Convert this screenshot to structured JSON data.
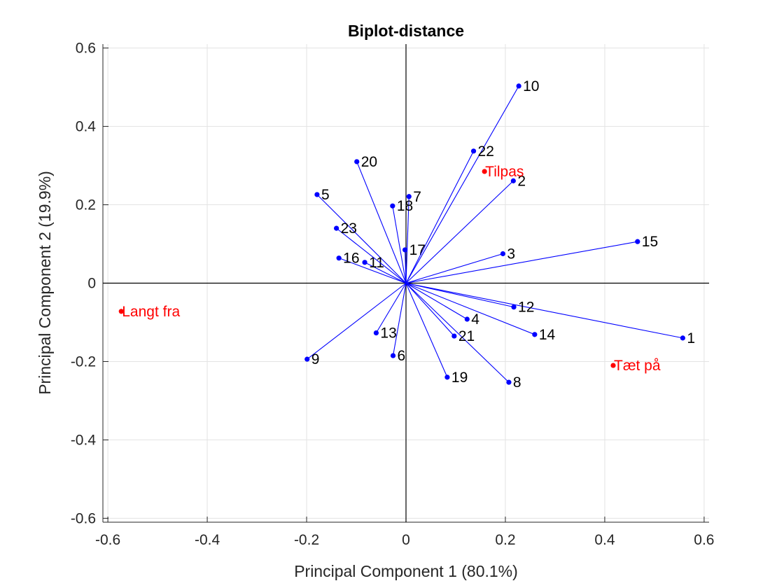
{
  "chart_data": {
    "type": "scatter",
    "title": "Biplot-distance",
    "xlabel": "Principal Component 1 (80.1%)",
    "ylabel": "Principal Component 2 (19.9%)",
    "xlim": [
      -0.61,
      0.61
    ],
    "ylim": [
      -0.61,
      0.61
    ],
    "xticks": [
      -0.6,
      -0.4,
      -0.2,
      0,
      0.2,
      0.4,
      0.6
    ],
    "yticks": [
      -0.6,
      -0.4,
      -0.2,
      0,
      0.2,
      0.4,
      0.6
    ],
    "xtick_labels": [
      "-0.6",
      "-0.4",
      "-0.2",
      "0",
      "0.2",
      "0.4",
      "0.6"
    ],
    "ytick_labels": [
      "-0.6",
      "-0.4",
      "-0.2",
      "0",
      "0.2",
      "0.4",
      "0.6"
    ],
    "grid": true,
    "vector_color": "#0000ff",
    "observation_color": "#ff0000",
    "vectors": [
      {
        "label": "1",
        "x": 0.557,
        "y": -0.14
      },
      {
        "label": "2",
        "x": 0.216,
        "y": 0.261
      },
      {
        "label": "3",
        "x": 0.195,
        "y": 0.075
      },
      {
        "label": "4",
        "x": 0.123,
        "y": -0.092
      },
      {
        "label": "5",
        "x": -0.179,
        "y": 0.226
      },
      {
        "label": "6",
        "x": -0.026,
        "y": -0.185
      },
      {
        "label": "7",
        "x": 0.006,
        "y": 0.221
      },
      {
        "label": "8",
        "x": 0.207,
        "y": -0.253
      },
      {
        "label": "9",
        "x": -0.199,
        "y": -0.194
      },
      {
        "label": "10",
        "x": 0.227,
        "y": 0.503
      },
      {
        "label": "11",
        "x": -0.083,
        "y": 0.053
      },
      {
        "label": "12",
        "x": 0.217,
        "y": -0.061
      },
      {
        "label": "13",
        "x": -0.06,
        "y": -0.127
      },
      {
        "label": "14",
        "x": 0.259,
        "y": -0.131
      },
      {
        "label": "15",
        "x": 0.466,
        "y": 0.106
      },
      {
        "label": "16",
        "x": -0.135,
        "y": 0.064
      },
      {
        "label": "17",
        "x": -0.002,
        "y": 0.085
      },
      {
        "label": "18",
        "x": -0.027,
        "y": 0.197
      },
      {
        "label": "19",
        "x": 0.083,
        "y": -0.24
      },
      {
        "label": "20",
        "x": -0.099,
        "y": 0.31
      },
      {
        "label": "21",
        "x": 0.097,
        "y": -0.135
      },
      {
        "label": "22",
        "x": 0.136,
        "y": 0.337
      },
      {
        "label": "23",
        "x": -0.14,
        "y": 0.14
      }
    ],
    "observations": [
      {
        "label": "Langt fra",
        "x": -0.573,
        "y": -0.072
      },
      {
        "label": "Tilpas",
        "x": 0.158,
        "y": 0.285
      },
      {
        "label": "Tæt på",
        "x": 0.417,
        "y": -0.21
      }
    ]
  }
}
